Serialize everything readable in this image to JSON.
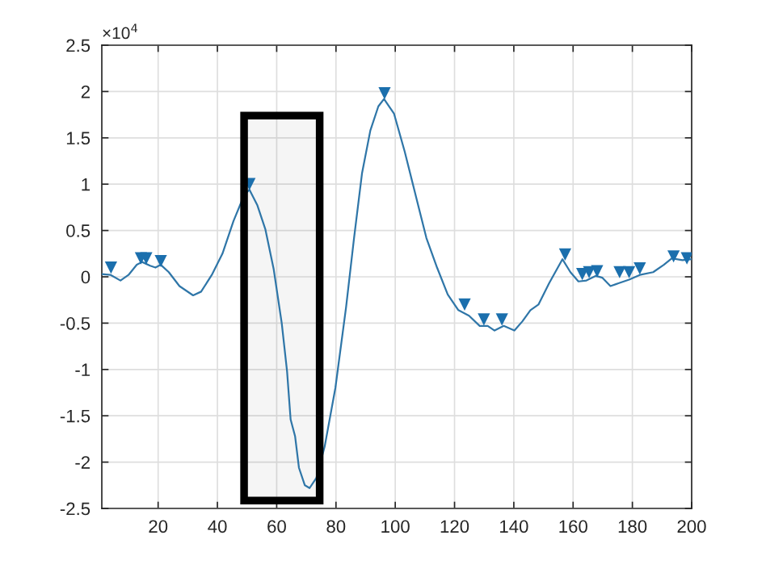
{
  "chart_data": {
    "type": "line",
    "series": [
      {
        "color": "#2f76a8",
        "marker": "none",
        "x": [
          1,
          4,
          7.3,
          10,
          12.8,
          14.6,
          17.3,
          19.1,
          20.9,
          23.6,
          27.2,
          31.8,
          34.5,
          38.1,
          41.7,
          45.4,
          49,
          50.8,
          53.5,
          56.2,
          59,
          61.7,
          63.5,
          64.7,
          66.2,
          67.5,
          69.5,
          71.1,
          73.4,
          76.2,
          79.8,
          83.4,
          86.1,
          88.8,
          91.6,
          94.3,
          96.2,
          99.6,
          103.2,
          106.8,
          110.5,
          114.1,
          117.7,
          121.3,
          124.9,
          128.5,
          131.2,
          133.5,
          136.6,
          140.2,
          142.9,
          145.6,
          148.3,
          151.9,
          156.4,
          159.1,
          161.8,
          164.5,
          167.7,
          169.9,
          172.6,
          175.3,
          178.9,
          182.5,
          187,
          190.6,
          193.3,
          196.9,
          200
        ],
        "values": [
          0.03,
          0.02,
          -0.04,
          0.02,
          0.13,
          0.16,
          0.12,
          0.1,
          0.13,
          0.05,
          -0.1,
          -0.2,
          -0.16,
          0.02,
          0.25,
          0.6,
          0.88,
          0.94,
          0.77,
          0.51,
          0.08,
          -0.5,
          -1.02,
          -1.54,
          -1.72,
          -2.06,
          -2.25,
          -2.28,
          -2.17,
          -1.83,
          -1.2,
          -0.33,
          0.42,
          1.12,
          1.58,
          1.84,
          1.92,
          1.76,
          1.35,
          0.89,
          0.42,
          0.1,
          -0.19,
          -0.36,
          -0.42,
          -0.53,
          -0.53,
          -0.58,
          -0.53,
          -0.58,
          -0.48,
          -0.36,
          -0.3,
          -0.07,
          0.19,
          0.05,
          -0.05,
          -0.04,
          0.01,
          -0.01,
          -0.1,
          -0.07,
          -0.03,
          0.02,
          0.05,
          0.13,
          0.2,
          0.18,
          0.19
        ]
      },
      {
        "type": "scatter",
        "color": "#1b6fad",
        "marker": "triangle",
        "x": [
          4.1,
          14.2,
          16,
          20.9,
          50.8,
          96.4,
          123.4,
          129.9,
          136,
          157.3,
          163.1,
          165.4,
          168.1,
          175.7,
          178.9,
          182.5,
          193.9,
          198.4
        ],
        "values": [
          0.1,
          0.2,
          0.2,
          0.17,
          1.0,
          1.98,
          -0.3,
          -0.46,
          -0.46,
          0.24,
          0.03,
          0.05,
          0.06,
          0.05,
          0.05,
          0.09,
          0.22,
          0.2
        ]
      }
    ],
    "xlim": [
      1,
      200
    ],
    "xticks": [
      20,
      40,
      60,
      80,
      100,
      120,
      140,
      160,
      180,
      200
    ],
    "ylim": [
      -2.5,
      2.5
    ],
    "yticks": [
      -2.5,
      -2,
      -1.5,
      -1,
      -0.5,
      0,
      0.5,
      1,
      1.5,
      2,
      2.5
    ],
    "bands": [
      {
        "axis": "x",
        "from": 49,
        "to": 74.5,
        "color": "#000000"
      }
    ],
    "annotations": [
      "×10$^{4}$"
    ],
    "grid": true,
    "legend": false
  }
}
